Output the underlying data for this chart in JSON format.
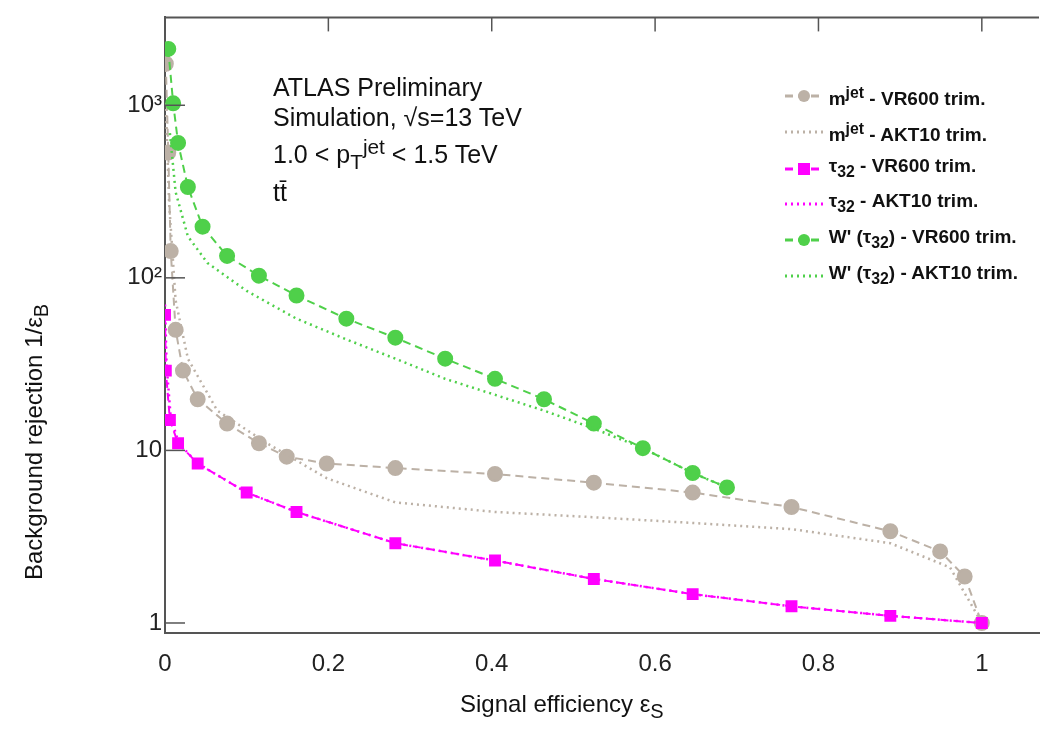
{
  "chart_data": {
    "type": "line",
    "xlabel": "Signal efficiency ε$_{S}$",
    "ylabel": "Background rejection 1/ε$_{B}$",
    "xlim": [
      0,
      1.07
    ],
    "xticks": [
      0,
      0.2,
      0.4,
      0.6,
      0.8,
      1
    ],
    "ylim": [
      0.875,
      3230
    ],
    "yticks": [
      1,
      10,
      {
        "value": 100,
        "label": "10²"
      },
      {
        "value": 1000,
        "label": "10³"
      }
    ],
    "log": "y",
    "grid": false,
    "legend": "top right",
    "annotations": [
      "ATLAS Preliminary",
      "Simulation, √s=13 TeV",
      "1.0 < p$_{T}$$^{jet}$ < 1.5 TeV",
      "tt̄"
    ],
    "series": [
      {
        "name": "m$^{jet}$ - VR600 trim.",
        "color": "#bcb1a6",
        "marker": "circle",
        "line_style": "dashed",
        "x": [
          0.001,
          0.004,
          0.007,
          0.013,
          0.022,
          0.04,
          0.076,
          0.115,
          0.149,
          0.198,
          0.282,
          0.404,
          0.525,
          0.646,
          0.767,
          0.888,
          0.949,
          0.979,
          1.0
        ],
        "values": [
          1740,
          532,
          143,
          50,
          29,
          19.8,
          14.3,
          11,
          9.2,
          8.4,
          7.9,
          7.3,
          6.5,
          5.7,
          4.7,
          3.4,
          2.6,
          1.86,
          1
        ]
      },
      {
        "name": "m$^{jet}$ - AKT10 trim.",
        "color": "#bcb1a6",
        "marker": "none",
        "line_style": "dotted",
        "x": [
          0.001,
          0.005,
          0.013,
          0.028,
          0.064,
          0.125,
          0.198,
          0.282,
          0.404,
          0.525,
          0.646,
          0.767,
          0.888,
          0.961,
          1.0
        ],
        "values": [
          1030,
          275,
          74,
          34,
          17,
          11,
          6.9,
          5.0,
          4.4,
          4.1,
          3.8,
          3.5,
          2.9,
          2.1,
          1
        ]
      },
      {
        "name": "τ$_{32}$ - VR600 trim.",
        "color": "#ff00ff",
        "marker": "square",
        "line_style": "dashed",
        "x": [
          0,
          0.001,
          0.006,
          0.016,
          0.04,
          0.1,
          0.161,
          0.282,
          0.404,
          0.525,
          0.646,
          0.767,
          0.888,
          1.0
        ],
        "values": [
          61,
          29,
          15,
          11,
          8.4,
          5.7,
          4.4,
          2.9,
          2.3,
          1.8,
          1.47,
          1.25,
          1.1,
          1
        ]
      },
      {
        "name": "τ$_{32}$ - AKT10 trim.",
        "color": "#ff00ff",
        "marker": "none",
        "line_style": "dotted",
        "x": [
          0,
          0.002,
          0.007,
          0.017,
          0.04,
          0.1,
          0.161,
          0.282,
          0.404,
          0.525,
          0.646,
          0.767,
          0.888,
          1.0
        ],
        "values": [
          70,
          31,
          15.5,
          11,
          8.4,
          5.7,
          4.4,
          2.9,
          2.3,
          1.8,
          1.47,
          1.25,
          1.1,
          1
        ]
      },
      {
        "name": "W' (τ$_{32}$) - VR600 trim.",
        "color": "#4fd04a",
        "marker": "circle",
        "line_style": "dashed",
        "x": [
          0.004,
          0.01,
          0.016,
          0.028,
          0.046,
          0.076,
          0.115,
          0.161,
          0.222,
          0.282,
          0.343,
          0.404,
          0.464,
          0.525,
          0.585,
          0.646,
          0.688
        ],
        "values": [
          2120,
          1026,
          605,
          336,
          198,
          134,
          103,
          79,
          58,
          45,
          34,
          26,
          19.8,
          14.3,
          10.3,
          7.4,
          6.1
        ]
      },
      {
        "name": "W' (τ$_{32}$) - AKT10 trim.",
        "color": "#4fd04a",
        "marker": "none",
        "line_style": "dotted",
        "x": [
          0.006,
          0.013,
          0.028,
          0.052,
          0.1,
          0.161,
          0.222,
          0.282,
          0.343,
          0.404,
          0.464,
          0.525,
          0.585,
          0.646,
          0.688
        ],
        "values": [
          690,
          314,
          174,
          122,
          84,
          58,
          44,
          34,
          26,
          21,
          17,
          13.4,
          10.3,
          7.4,
          6.1
        ]
      }
    ]
  }
}
